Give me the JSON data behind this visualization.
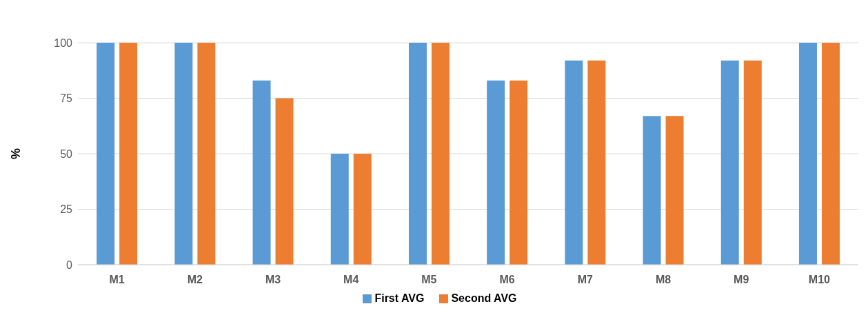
{
  "chart_data": {
    "type": "bar",
    "ylabel": "%",
    "categories": [
      "M1",
      "M2",
      "M3",
      "M4",
      "M5",
      "M6",
      "M7",
      "M8",
      "M9",
      "M10"
    ],
    "series": [
      {
        "name": "First AVG",
        "color": "#5b9bd5",
        "values": [
          100,
          100,
          83,
          50,
          100,
          83,
          92,
          67,
          92,
          100
        ]
      },
      {
        "name": "Second AVG",
        "color": "#ed7d31",
        "values": [
          100,
          100,
          75,
          50,
          100,
          83,
          92,
          67,
          92,
          100
        ]
      }
    ],
    "ylim": [
      0,
      100
    ],
    "yticks": [
      0,
      25,
      50,
      75,
      100
    ],
    "grid": "y",
    "legend": "bottom"
  }
}
